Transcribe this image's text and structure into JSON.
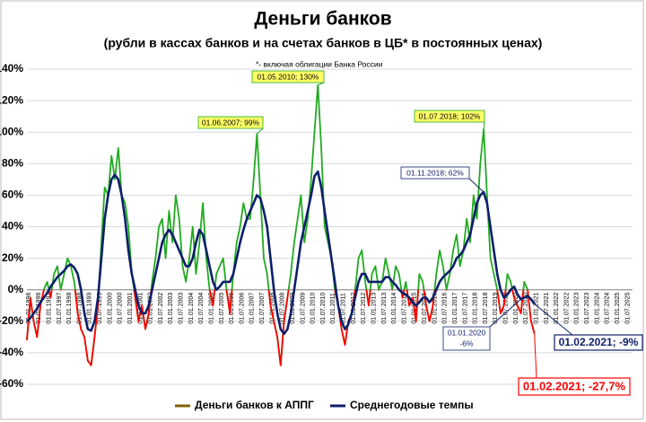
{
  "chart_data": {
    "type": "line",
    "title": "Деньги банков",
    "subtitle": "(рубли в кассах банков и на счетах банков в ЦБ* в постоянных ценах)",
    "note": "*- включая облигации Банка России",
    "categories": [
      "01.01.1996",
      null,
      null,
      "01.07.1996",
      null,
      null,
      "01.01.1997",
      null,
      null,
      "01.07.1997",
      null,
      null,
      "01.01.1998",
      null,
      null,
      "01.07.1998",
      null,
      null,
      "01.01.1999",
      null,
      null,
      "01.07.1999",
      null,
      null,
      "01.01.2000",
      null,
      null,
      "01.07.2000",
      null,
      null,
      "01.01.2001",
      null,
      null,
      "01.07.2001",
      null,
      null,
      "01.01.2002",
      null,
      null,
      "01.07.2002",
      null,
      null,
      "01.01.2003",
      null,
      null,
      "01.07.2003",
      null,
      null,
      "01.01.2004",
      null,
      null,
      "01.07.2004",
      null,
      null,
      "01.01.2005",
      null,
      null,
      "01.07.2005",
      null,
      null,
      "01.01.2006",
      null,
      null,
      "01.07.2006",
      null,
      null,
      "01.01.2007",
      null,
      null,
      "01.07.2007",
      null,
      null,
      "01.01.2008",
      null,
      null,
      "01.07.2008",
      null,
      null,
      "01.01.2009",
      null,
      null,
      "01.07.2009",
      null,
      null,
      "01.01.2010",
      null,
      null,
      "01.07.2010",
      null,
      null,
      "01.01.2011",
      null,
      null,
      "01.07.2011",
      null,
      null,
      "01.01.2012",
      null,
      null,
      "01.07.2012",
      null,
      null,
      "01.01.2013",
      null,
      null,
      "01.07.2013",
      null,
      null,
      "01.01.2014",
      null,
      null,
      "01.07.2014",
      null,
      null,
      "01.01.2015",
      null,
      null,
      "01.07.2015",
      null,
      null,
      "01.01.2016",
      null,
      null,
      "01.07.2016",
      null,
      null,
      "01.01.2017",
      null,
      null,
      "01.07.2017",
      null,
      null,
      "01.01.2018",
      null,
      null,
      "01.07.2018",
      null,
      null,
      "01.01.2019",
      null,
      null,
      "01.07.2019",
      null,
      null,
      "01.01.2020",
      null,
      null,
      "01.07.2020",
      null,
      null,
      "01.01.2021",
      null,
      null,
      "01.07.2021",
      null,
      null,
      "01.01.2022",
      null,
      null,
      "01.07.2022",
      null,
      null,
      "01.01.2023",
      null,
      null,
      "01.07.2023",
      null,
      null,
      "01.01.2024",
      null,
      null,
      "01.07.2024",
      null,
      null,
      "01.01.2025",
      null,
      null,
      "01.07.2025",
      null,
      null
    ],
    "series": [
      {
        "name": "Деньги банков к АППГ",
        "color": "#22aa22",
        "negative_color": "#ff0000",
        "legend_color": "#806000",
        "values": [
          -32,
          -5,
          -20,
          -30,
          -10,
          0,
          5,
          -5,
          10,
          15,
          0,
          10,
          20,
          15,
          5,
          -15,
          -25,
          -30,
          -45,
          -48,
          -30,
          -10,
          30,
          65,
          60,
          85,
          70,
          90,
          60,
          55,
          40,
          10,
          -5,
          -20,
          -10,
          -25,
          -15,
          5,
          20,
          40,
          45,
          20,
          50,
          30,
          60,
          45,
          15,
          5,
          20,
          40,
          10,
          30,
          55,
          20,
          0,
          -10,
          10,
          15,
          20,
          0,
          -15,
          10,
          30,
          40,
          55,
          45,
          45,
          70,
          99,
          60,
          20,
          10,
          -10,
          -20,
          -30,
          -48,
          -20,
          -5,
          10,
          30,
          45,
          60,
          30,
          45,
          70,
          100,
          130,
          90,
          40,
          30,
          20,
          0,
          -10,
          -25,
          -35,
          -20,
          -15,
          0,
          20,
          25,
          5,
          -10,
          10,
          15,
          0,
          5,
          20,
          10,
          0,
          15,
          10,
          -5,
          5,
          -10,
          -5,
          -20,
          10,
          5,
          -10,
          -20,
          -10,
          10,
          25,
          15,
          0,
          10,
          25,
          35,
          15,
          25,
          45,
          30,
          60,
          45,
          80,
          102,
          60,
          20,
          10,
          0,
          -15,
          -10,
          10,
          5,
          -5,
          -10,
          -15,
          5,
          0,
          -20,
          -27.7,
          null,
          null,
          null,
          null,
          null,
          null,
          null,
          null,
          null,
          null,
          null,
          null,
          null,
          null,
          null,
          null,
          null,
          null,
          null,
          null,
          null,
          null,
          null,
          null,
          null,
          null,
          null,
          null,
          null
        ]
      },
      {
        "name": "Среднегодовые темпы",
        "color": "#0d1f6b",
        "values": [
          -20,
          -18,
          -15,
          -12,
          -8,
          -5,
          -2,
          2,
          5,
          8,
          10,
          12,
          15,
          16,
          14,
          10,
          0,
          -15,
          -25,
          -26,
          -20,
          -5,
          20,
          45,
          60,
          70,
          73,
          70,
          60,
          45,
          25,
          10,
          0,
          -10,
          -15,
          -15,
          -10,
          0,
          10,
          20,
          30,
          35,
          38,
          35,
          30,
          25,
          20,
          15,
          15,
          20,
          30,
          38,
          35,
          25,
          15,
          5,
          0,
          2,
          5,
          5,
          5,
          10,
          20,
          30,
          38,
          45,
          50,
          55,
          60,
          58,
          50,
          40,
          20,
          0,
          -15,
          -25,
          -28,
          -25,
          -15,
          0,
          15,
          30,
          40,
          50,
          60,
          72,
          75,
          65,
          50,
          35,
          20,
          5,
          -10,
          -20,
          -25,
          -22,
          -15,
          -5,
          5,
          10,
          10,
          5,
          5,
          5,
          5,
          5,
          8,
          8,
          5,
          3,
          0,
          -2,
          -3,
          -5,
          -8,
          -10,
          -8,
          -5,
          -5,
          -8,
          -5,
          0,
          5,
          8,
          10,
          12,
          15,
          20,
          22,
          25,
          30,
          35,
          45,
          55,
          60,
          62,
          55,
          40,
          25,
          10,
          0,
          -5,
          -3,
          0,
          2,
          -3,
          -6,
          -5,
          -4,
          -6,
          -9,
          null,
          null,
          null,
          null,
          null,
          null,
          null,
          null,
          null,
          null,
          null,
          null,
          null,
          null,
          null,
          null,
          null,
          null,
          null,
          null,
          null,
          null,
          null,
          null,
          null,
          null,
          null,
          null,
          null
        ]
      }
    ],
    "ylim": [
      -60,
      140
    ],
    "yticks": [
      {
        "value": -60,
        "label": "-60%"
      },
      {
        "value": -40,
        "label": "-40%"
      },
      {
        "value": -20,
        "label": "-20%"
      },
      {
        "value": 0,
        "label": "0%"
      },
      {
        "value": 20,
        "label": "20%"
      },
      {
        "value": 40,
        "label": "40%"
      },
      {
        "value": 60,
        "label": "60%"
      },
      {
        "value": 80,
        "label": "80%"
      },
      {
        "value": 100,
        "label": "100%"
      },
      {
        "value": 120,
        "label": "120%"
      },
      {
        "value": 140,
        "label": "140%"
      }
    ],
    "grid": true,
    "legend": "bottom",
    "annotations": [
      "01.05.2010; 130%",
      "01.06.2007; 99%",
      "01.07.2018; 102%",
      "01.11.2018; 62%",
      "01.01.2020",
      "-6%",
      "01.02.2021; -9%",
      "01.02.2021; -27,7%"
    ]
  }
}
